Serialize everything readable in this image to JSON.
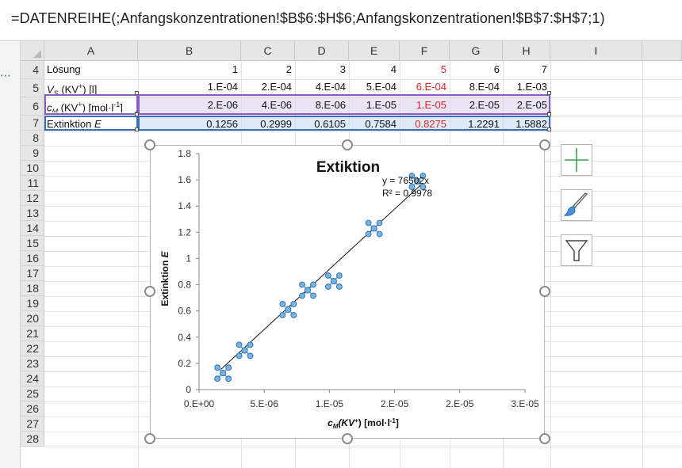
{
  "formula_bar": {
    "formula": "=DATENREIHE(;Anfangskonzentrationen!$B$6:$H$6;Anfangskonzentrationen!$B$7:$H$7;1)"
  },
  "left_indicator": "⋯",
  "columns": [
    "A",
    "B",
    "C",
    "D",
    "E",
    "F",
    "G",
    "H",
    "I"
  ],
  "rows": [
    "4",
    "5",
    "6",
    "7",
    "8",
    "9",
    "10",
    "11",
    "12",
    "13",
    "14",
    "15",
    "16",
    "17",
    "18",
    "19",
    "20",
    "21",
    "22",
    "23",
    "24",
    "25",
    "26",
    "27",
    "28"
  ],
  "table": {
    "row4": {
      "label": "Lösung",
      "values": [
        "1",
        "2",
        "3",
        "4",
        "5",
        "6",
        "7"
      ]
    },
    "row5": {
      "label_main": "V",
      "label_sub": "S",
      "label_mid": "(KV",
      "label_sup": "+",
      "label_end": ") [l]",
      "values": [
        "1.E-04",
        "2.E-04",
        "4.E-04",
        "5.E-04",
        "6.E-04",
        "8.E-04",
        "1.E-03"
      ]
    },
    "row6": {
      "label_main": "c",
      "label_sub": "M",
      "label_mid": "(KV",
      "label_sup": "+",
      "label_end": ") [mol·l",
      "label_sup2": "-1",
      "label_close": "]",
      "values": [
        "2.E-06",
        "4.E-06",
        "8.E-06",
        "1.E-05",
        "1.E-05",
        "2.E-05",
        "2.E-05"
      ]
    },
    "row7": {
      "label": "Extinktion",
      "label_italic": "E",
      "values": [
        "0.1256",
        "0.2999",
        "0.6105",
        "0.7584",
        "0.8275",
        "1.2291",
        "1.5882"
      ]
    }
  },
  "highlight_color": "#e02424",
  "chart_data": {
    "type": "scatter",
    "title": "Extiktion",
    "xlabel_main": "c",
    "xlabel_sub": "M",
    "xlabel_rest": "(KV",
    "xlabel_sup": "+",
    "xlabel_end": ") [mol·l",
    "xlabel_sup2": "-1",
    "xlabel_close": "]",
    "ylabel_main": "Extinktion ",
    "ylabel_italic": "E",
    "x_ticks": [
      "0.E+00",
      "5.E-06",
      "1.E-05",
      "2.E-05",
      "2.E-05",
      "3.E-05"
    ],
    "y_ticks": [
      "0",
      "0.2",
      "0.4",
      "0.6",
      "0.8",
      "1",
      "1.2",
      "1.4",
      "1.6",
      "1.8"
    ],
    "xlim": [
      0,
      3e-05
    ],
    "ylim": [
      0,
      1.8
    ],
    "series": [
      {
        "x": [
          2.2e-06,
          4.2e-06,
          8.2e-06,
          1e-05,
          1.24e-05,
          1.61e-05,
          2.01e-05
        ],
        "y": [
          0.1256,
          0.2999,
          0.6105,
          0.7584,
          0.8275,
          1.2291,
          1.5882
        ]
      }
    ],
    "trendline": {
      "slope": 76502,
      "equation": "y = 76502x",
      "r2": "R² = 0.9978"
    },
    "marker_color": "#7ab4e0",
    "marker_edge": "#3a78b8"
  },
  "side_buttons": [
    "plus-icon",
    "brush-icon",
    "filter-icon"
  ]
}
